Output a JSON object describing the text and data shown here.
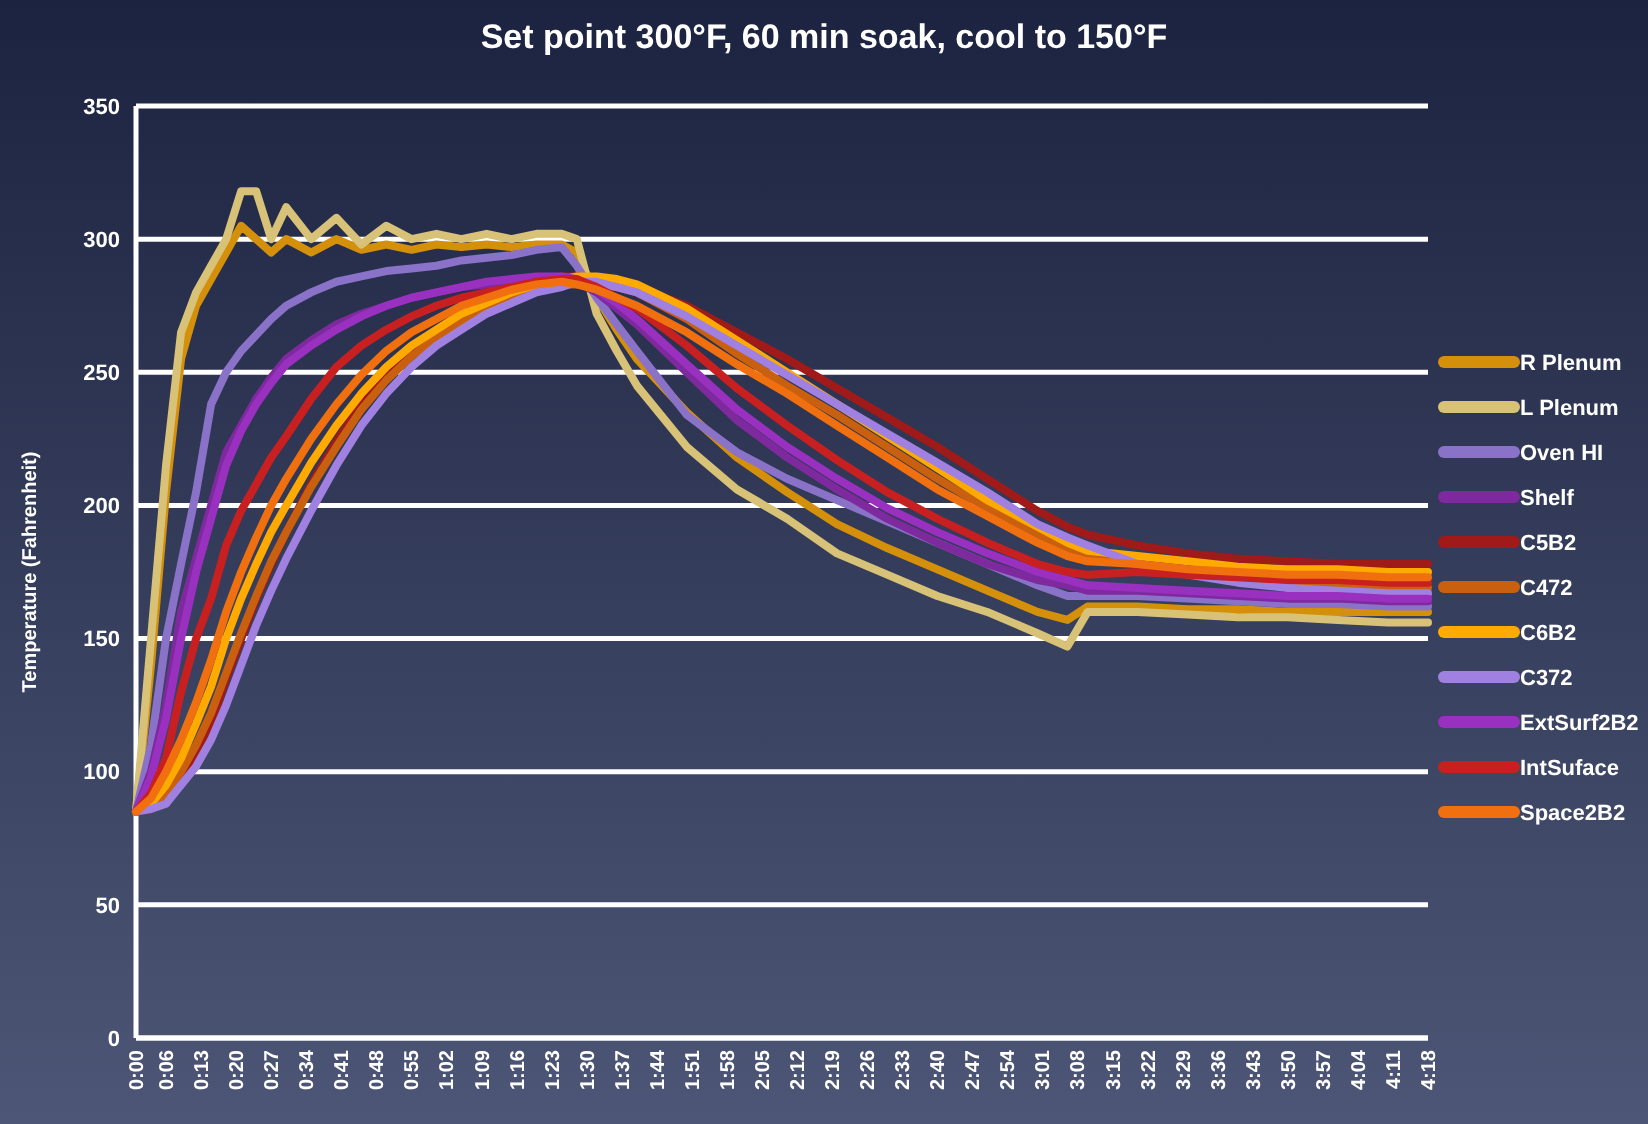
{
  "chart_data": {
    "type": "line",
    "title": "Set point 300°F, 60 min soak, cool to 150°F",
    "ylabel": "Temperature (Fahrenheit)",
    "x": [
      0,
      0.05,
      0.1,
      0.15,
      0.2,
      0.25,
      0.3,
      0.35,
      0.4,
      0.45,
      0.5,
      0.583,
      0.667,
      0.75,
      0.833,
      0.917,
      1,
      1.083,
      1.167,
      1.25,
      1.333,
      1.417,
      1.467,
      1.533,
      1.6,
      1.667,
      1.833,
      2,
      2.167,
      2.333,
      2.5,
      2.667,
      2.833,
      3,
      3.1,
      3.167,
      3.333,
      3.5,
      3.667,
      3.833,
      4,
      4.167,
      4.3
    ],
    "xlim": [
      0,
      4.3
    ],
    "xticks": [
      {
        "value": 0,
        "label": "0:00"
      },
      {
        "value": 0.1,
        "label": "0:06"
      },
      {
        "value": 0.2167,
        "label": "0:13"
      },
      {
        "value": 0.3333,
        "label": "0:20"
      },
      {
        "value": 0.45,
        "label": "0:27"
      },
      {
        "value": 0.5667,
        "label": "0:34"
      },
      {
        "value": 0.6833,
        "label": "0:41"
      },
      {
        "value": 0.8,
        "label": "0:48"
      },
      {
        "value": 0.9167,
        "label": "0:55"
      },
      {
        "value": 1.0333,
        "label": "1:02"
      },
      {
        "value": 1.15,
        "label": "1:09"
      },
      {
        "value": 1.2667,
        "label": "1:16"
      },
      {
        "value": 1.3833,
        "label": "1:23"
      },
      {
        "value": 1.5,
        "label": "1:30"
      },
      {
        "value": 1.6167,
        "label": "1:37"
      },
      {
        "value": 1.7333,
        "label": "1:44"
      },
      {
        "value": 1.85,
        "label": "1:51"
      },
      {
        "value": 1.9667,
        "label": "1:58"
      },
      {
        "value": 2.0833,
        "label": "2:05"
      },
      {
        "value": 2.2,
        "label": "2:12"
      },
      {
        "value": 2.3167,
        "label": "2:19"
      },
      {
        "value": 2.4333,
        "label": "2:26"
      },
      {
        "value": 2.55,
        "label": "2:33"
      },
      {
        "value": 2.6667,
        "label": "2:40"
      },
      {
        "value": 2.7833,
        "label": "2:47"
      },
      {
        "value": 2.9,
        "label": "2:54"
      },
      {
        "value": 3.0167,
        "label": "3:01"
      },
      {
        "value": 3.1333,
        "label": "3:08"
      },
      {
        "value": 3.25,
        "label": "3:15"
      },
      {
        "value": 3.3667,
        "label": "3:22"
      },
      {
        "value": 3.4833,
        "label": "3:29"
      },
      {
        "value": 3.6,
        "label": "3:36"
      },
      {
        "value": 3.7167,
        "label": "3:43"
      },
      {
        "value": 3.8333,
        "label": "3:50"
      },
      {
        "value": 3.95,
        "label": "3:57"
      },
      {
        "value": 4.0667,
        "label": "4:04"
      },
      {
        "value": 4.1833,
        "label": "4:11"
      },
      {
        "value": 4.3,
        "label": "4:18"
      }
    ],
    "ylim": [
      0,
      350
    ],
    "yticks": [
      0,
      50,
      100,
      150,
      200,
      250,
      300,
      350
    ],
    "grid": "y",
    "legend": "right",
    "line_style": "solid",
    "series": [
      {
        "name": "R Plenum",
        "color": "#d4900a",
        "values": [
          85,
          140,
          205,
          255,
          275,
          285,
          295,
          305,
          300,
          295,
          300,
          295,
          300,
          296,
          298,
          296,
          298,
          297,
          298,
          297,
          298,
          298,
          295,
          278,
          266,
          255,
          235,
          218,
          205,
          193,
          184,
          176,
          168,
          160,
          157,
          162,
          162,
          161,
          161,
          160,
          160,
          160,
          160
        ]
      },
      {
        "name": "L Plenum",
        "color": "#d8c277",
        "values": [
          85,
          150,
          215,
          265,
          280,
          290,
          300,
          318,
          318,
          300,
          312,
          300,
          308,
          298,
          305,
          300,
          302,
          300,
          302,
          300,
          302,
          302,
          300,
          272,
          258,
          245,
          222,
          206,
          195,
          182,
          174,
          166,
          160,
          152,
          147,
          160,
          160,
          159,
          158,
          158,
          157,
          156,
          156
        ]
      },
      {
        "name": "Oven HI",
        "color": "#8a72c8",
        "values": [
          85,
          110,
          150,
          178,
          205,
          238,
          250,
          258,
          264,
          270,
          275,
          280,
          284,
          286,
          288,
          289,
          290,
          292,
          293,
          294,
          296,
          297,
          290,
          278,
          268,
          258,
          234,
          220,
          210,
          202,
          194,
          186,
          178,
          170,
          166,
          166,
          166,
          165,
          164,
          163,
          163,
          162,
          162
        ]
      },
      {
        "name": "Shelf",
        "color": "#7e2a9e",
        "values": [
          85,
          100,
          125,
          160,
          180,
          200,
          220,
          230,
          240,
          248,
          255,
          262,
          268,
          272,
          275,
          278,
          280,
          282,
          283,
          284,
          285,
          285,
          284,
          280,
          274,
          268,
          250,
          232,
          218,
          206,
          195,
          186,
          178,
          172,
          170,
          168,
          168,
          167,
          166,
          165,
          165,
          164,
          164
        ]
      },
      {
        "name": "C5B2",
        "color": "#a01a1a",
        "values": [
          85,
          86,
          90,
          98,
          105,
          118,
          135,
          150,
          165,
          178,
          190,
          208,
          224,
          238,
          250,
          259,
          266,
          272,
          277,
          281,
          284,
          286,
          286,
          285,
          284,
          282,
          275,
          265,
          255,
          244,
          233,
          222,
          210,
          198,
          192,
          189,
          185,
          182,
          180,
          179,
          178,
          178,
          178
        ]
      },
      {
        "name": "C472",
        "color": "#c86010",
        "values": [
          85,
          87,
          92,
          100,
          110,
          122,
          137,
          152,
          166,
          179,
          190,
          207,
          222,
          236,
          247,
          256,
          263,
          269,
          274,
          278,
          281,
          283,
          283,
          283,
          282,
          280,
          270,
          257,
          245,
          234,
          222,
          210,
          199,
          189,
          184,
          181,
          178,
          175,
          172,
          171,
          170,
          169,
          169
        ]
      },
      {
        "name": "C6B2",
        "color": "#ffaa00",
        "values": [
          85,
          88,
          95,
          105,
          118,
          132,
          150,
          165,
          178,
          190,
          200,
          216,
          230,
          242,
          252,
          260,
          266,
          272,
          276,
          280,
          283,
          285,
          286,
          286,
          285,
          283,
          274,
          262,
          250,
          238,
          226,
          214,
          202,
          192,
          186,
          183,
          181,
          179,
          177,
          176,
          176,
          175,
          175
        ]
      },
      {
        "name": "C372",
        "color": "#a080e0",
        "values": [
          85,
          86,
          88,
          95,
          102,
          112,
          125,
          140,
          155,
          168,
          180,
          198,
          215,
          230,
          242,
          252,
          260,
          266,
          272,
          276,
          280,
          282,
          284,
          284,
          282,
          280,
          271,
          260,
          249,
          238,
          227,
          216,
          205,
          193,
          188,
          185,
          178,
          174,
          171,
          169,
          168,
          167,
          167
        ]
      },
      {
        "name": "ExtSurf2B2",
        "color": "#9a30c0",
        "values": [
          85,
          98,
          120,
          150,
          175,
          195,
          215,
          228,
          238,
          246,
          253,
          260,
          266,
          271,
          275,
          278,
          280,
          282,
          284,
          285,
          286,
          286,
          285,
          281,
          276,
          270,
          253,
          236,
          222,
          210,
          199,
          190,
          182,
          175,
          172,
          170,
          169,
          168,
          167,
          166,
          166,
          165,
          165
        ]
      },
      {
        "name": "IntSuface",
        "color": "#c82020",
        "values": [
          85,
          92,
          105,
          130,
          150,
          165,
          185,
          198,
          208,
          218,
          226,
          240,
          252,
          260,
          266,
          271,
          275,
          278,
          280,
          282,
          284,
          285,
          285,
          282,
          278,
          274,
          260,
          244,
          230,
          217,
          205,
          195,
          186,
          178,
          175,
          174,
          175,
          174,
          173,
          172,
          172,
          171,
          171
        ]
      },
      {
        "name": "Space2B2",
        "color": "#f07010",
        "values": [
          85,
          90,
          100,
          112,
          126,
          142,
          160,
          175,
          188,
          200,
          210,
          225,
          238,
          249,
          258,
          265,
          270,
          275,
          278,
          281,
          283,
          284,
          283,
          281,
          278,
          275,
          265,
          253,
          242,
          230,
          218,
          206,
          196,
          186,
          181,
          179,
          178,
          176,
          175,
          174,
          174,
          173,
          173
        ]
      }
    ]
  }
}
